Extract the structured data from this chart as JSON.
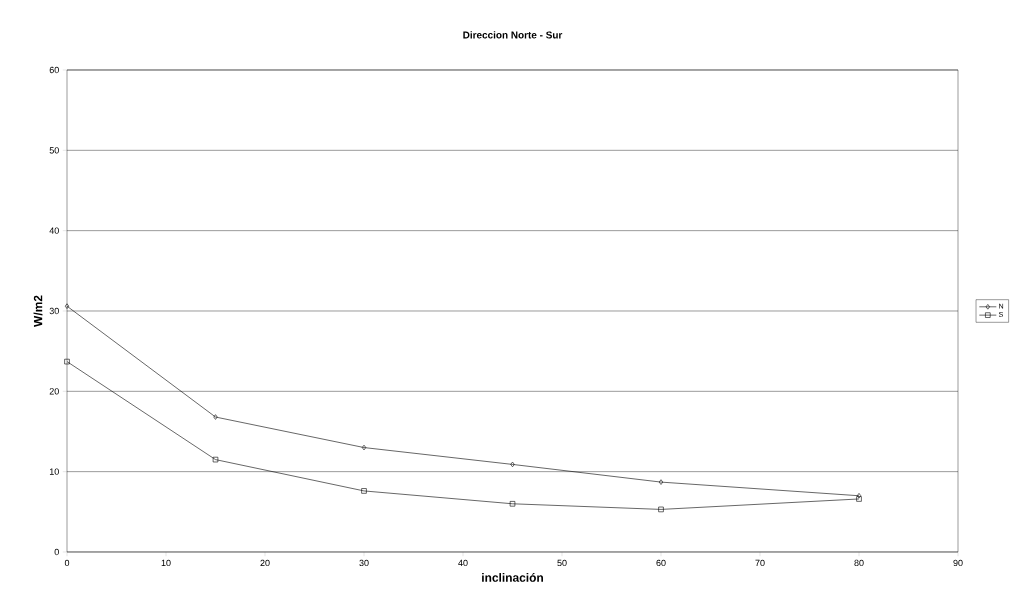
{
  "chart_data": {
    "type": "line",
    "title": "Direccion Norte - Sur",
    "xlabel": "inclinación",
    "ylabel": "W/m2",
    "x": [
      0,
      15,
      30,
      45,
      60,
      80
    ],
    "series": [
      {
        "name": "N",
        "color": "#000000",
        "marker": "diamond",
        "values": [
          30.6,
          16.8,
          13.0,
          10.9,
          8.7,
          7.0
        ]
      },
      {
        "name": "S",
        "color": "#000000",
        "marker": "square",
        "values": [
          23.7,
          11.5,
          7.6,
          6.0,
          5.3,
          6.6
        ]
      }
    ],
    "xlim": [
      0,
      90
    ],
    "xticks": [
      0,
      10,
      20,
      30,
      40,
      50,
      60,
      70,
      80,
      90
    ],
    "ylim": [
      0,
      60
    ],
    "yticks": [
      0,
      10,
      20,
      30,
      40,
      50,
      60
    ],
    "grid": "y",
    "legend": "right",
    "line_style": "solid"
  }
}
